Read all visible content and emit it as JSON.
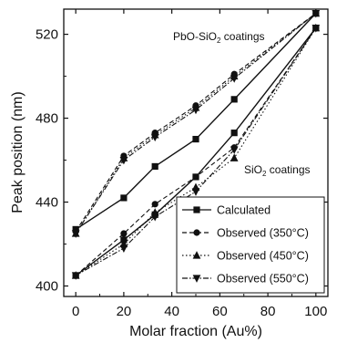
{
  "chart_data": {
    "type": "line",
    "xlabel": "Molar fraction (Au%)",
    "ylabel": "Peak position (nm)",
    "xlim": [
      -5,
      105
    ],
    "ylim": [
      395,
      532
    ],
    "x_ticks": [
      0,
      20,
      40,
      60,
      80,
      100
    ],
    "y_ticks": [
      400,
      440,
      480,
      520
    ],
    "grid": false,
    "legend_position": "bottom-right",
    "annotations": [
      {
        "text": "PbO-SiO",
        "sub": "2",
        "tail": " coatings"
      },
      {
        "text": "SiO",
        "sub": "2",
        "tail": " coatings"
      }
    ],
    "series": [
      {
        "name": "Calculated",
        "group": "PbO-SiO2",
        "marker": "square",
        "dash": "solid",
        "x": [
          0,
          20,
          33,
          50,
          66,
          100
        ],
        "y": [
          427,
          442,
          457,
          470,
          489,
          530
        ]
      },
      {
        "name": "Observed (350°C)",
        "group": "PbO-SiO2",
        "marker": "circle",
        "dash": "dashed",
        "x": [
          0,
          20,
          33,
          50,
          66,
          100
        ],
        "y": [
          426,
          462,
          473,
          486,
          501,
          530
        ]
      },
      {
        "name": "Observed (450°C)",
        "group": "PbO-SiO2",
        "marker": "triangle-up",
        "dash": "dotted",
        "x": [
          0,
          20,
          33,
          50,
          66,
          100
        ],
        "y": [
          425,
          461,
          472,
          485,
          500,
          530
        ]
      },
      {
        "name": "Observed (550°C)",
        "group": "PbO-SiO2",
        "marker": "triangle-down",
        "dash": "dashdot",
        "x": [
          0,
          20,
          33,
          50,
          66,
          100
        ],
        "y": [
          425,
          460,
          471,
          484,
          499,
          530
        ]
      },
      {
        "name": "Calculated",
        "group": "SiO2",
        "marker": "square",
        "dash": "solid",
        "x": [
          0,
          20,
          33,
          50,
          66,
          100
        ],
        "y": [
          405,
          422,
          434,
          452,
          473,
          523
        ]
      },
      {
        "name": "Observed (350°C)",
        "group": "SiO2",
        "marker": "circle",
        "dash": "dashed",
        "x": [
          0,
          20,
          33,
          50,
          66,
          100
        ],
        "y": [
          405,
          425,
          439,
          452,
          466,
          523
        ]
      },
      {
        "name": "Observed (450°C)",
        "group": "SiO2",
        "marker": "triangle-up",
        "dash": "dotted",
        "x": [
          0,
          20,
          33,
          50,
          66,
          100
        ],
        "y": [
          405,
          420,
          435,
          447,
          461,
          523
        ]
      },
      {
        "name": "Observed (550°C)",
        "group": "SiO2",
        "marker": "triangle-down",
        "dash": "dashdot",
        "x": [
          0,
          20,
          33,
          50,
          66,
          100
        ],
        "y": [
          405,
          418,
          433,
          445,
          465,
          523
        ]
      }
    ],
    "legend": [
      {
        "label": "Calculated",
        "marker": "square",
        "dash": "solid"
      },
      {
        "label": "Observed (350°C)",
        "marker": "circle",
        "dash": "dashed"
      },
      {
        "label": "Observed (450°C)",
        "marker": "triangle-up",
        "dash": "dotted"
      },
      {
        "label": "Observed (550°C)",
        "marker": "triangle-down",
        "dash": "dashdot"
      }
    ],
    "colors": {
      "ink": "#111111",
      "background": "#ffffff"
    }
  }
}
